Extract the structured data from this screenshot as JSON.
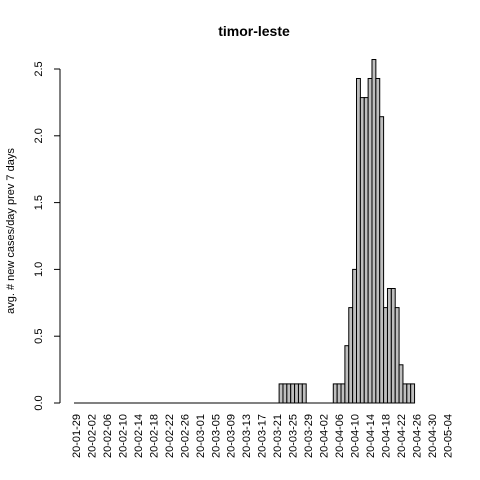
{
  "chart_data": {
    "type": "bar",
    "title": "timor-leste",
    "xlabel": "",
    "ylabel": "avg. # new cases/day prev  7  days",
    "ylim": [
      0,
      2.571
    ],
    "yticks": [
      "0.0",
      "0.5",
      "1.0",
      "1.5",
      "2.0",
      "2.5"
    ],
    "start_date": "2020-01-29",
    "xtick_every_days": 4,
    "xtick_labels": [
      "20-01-29",
      "20-02-02",
      "20-02-06",
      "20-02-10",
      "20-02-14",
      "20-02-18",
      "20-02-22",
      "20-02-26",
      "20-03-01",
      "20-03-05",
      "20-03-09",
      "20-03-13",
      "20-03-17",
      "20-03-21",
      "20-03-25",
      "20-03-29",
      "20-04-02",
      "20-04-06",
      "20-04-10",
      "20-04-14",
      "20-04-18",
      "20-04-22",
      "20-04-26",
      "20-04-30",
      "20-05-04"
    ],
    "values": [
      0,
      0,
      0,
      0,
      0,
      0,
      0,
      0,
      0,
      0,
      0,
      0,
      0,
      0,
      0,
      0,
      0,
      0,
      0,
      0,
      0,
      0,
      0,
      0,
      0,
      0,
      0,
      0,
      0,
      0,
      0,
      0,
      0,
      0,
      0,
      0,
      0,
      0,
      0,
      0,
      0,
      0,
      0,
      0,
      0,
      0,
      0,
      0,
      0,
      0,
      0,
      0,
      0,
      0.143,
      0.143,
      0.143,
      0.143,
      0.143,
      0.143,
      0.143,
      0,
      0,
      0,
      0,
      0,
      0,
      0,
      0.143,
      0.143,
      0.143,
      0.429,
      0.714,
      1.0,
      2.429,
      2.286,
      2.286,
      2.429,
      2.571,
      2.429,
      2.143,
      0.714,
      0.857,
      0.857,
      0.714,
      0.286,
      0.143,
      0.143,
      0.143
    ]
  }
}
